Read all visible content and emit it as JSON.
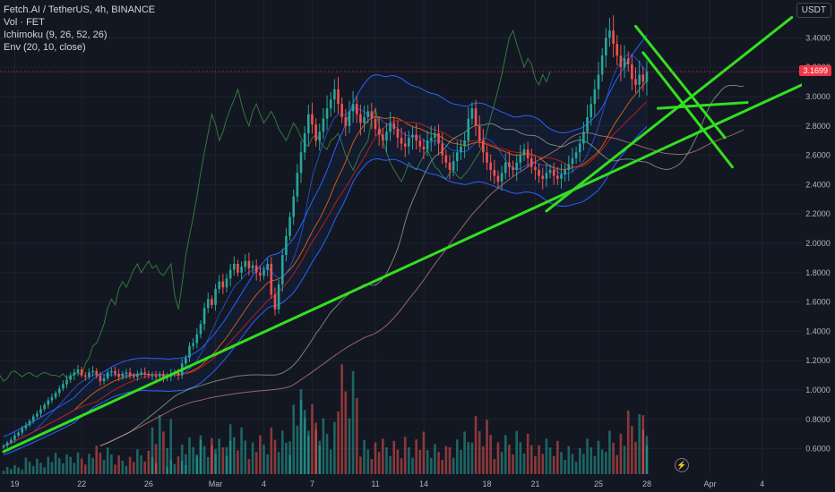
{
  "legend": {
    "symbol": "Fetch.AI / TetherUS, 4h, BINANCE",
    "volume": "Vol · FET",
    "ichimoku": "Ichimoku (9, 26, 52, 26)",
    "envelope": "Env (20, 10, close)"
  },
  "currency": "USDT",
  "last_price": "3.1699",
  "colors": {
    "background": "#131722",
    "up": "#26a69a",
    "down": "#ef5350",
    "trendline": "#32e01f",
    "envelope": "#2962ff",
    "price_tag": "#f23645"
  },
  "chart_data": {
    "type": "candlestick",
    "title": "Fetch.AI / TetherUS, 4h, BINANCE",
    "y_scale": "linear",
    "ylim": [
      0.5,
      3.8
    ],
    "y_ticks": [
      {
        "v": 3.4,
        "label": "3.4000"
      },
      {
        "v": 3.2,
        "label": "3.2000"
      },
      {
        "v": 3.0,
        "label": "3.0000"
      },
      {
        "v": 2.8,
        "label": "2.8000"
      },
      {
        "v": 2.6,
        "label": "2.6000"
      },
      {
        "v": 2.4,
        "label": "2.4000"
      },
      {
        "v": 2.2,
        "label": "2.2000"
      },
      {
        "v": 2.0,
        "label": "2.0000"
      },
      {
        "v": 1.8,
        "label": "1.8000"
      },
      {
        "v": 1.6,
        "label": "1.6000"
      },
      {
        "v": 1.4,
        "label": "1.4000"
      },
      {
        "v": 1.2,
        "label": "1.2000"
      },
      {
        "v": 1.0,
        "label": "1.0000"
      },
      {
        "v": 0.8,
        "label": "0.8000"
      },
      {
        "v": 0.6,
        "label": "0.6000"
      }
    ],
    "x_ticks": [
      {
        "i": 3,
        "label": "19"
      },
      {
        "i": 21,
        "label": "22"
      },
      {
        "i": 39,
        "label": "26"
      },
      {
        "i": 57,
        "label": "Mar"
      },
      {
        "i": 70,
        "label": "4"
      },
      {
        "i": 83,
        "label": "7"
      },
      {
        "i": 100,
        "label": "11"
      },
      {
        "i": 113,
        "label": "14"
      },
      {
        "i": 130,
        "label": "18"
      },
      {
        "i": 143,
        "label": "21"
      },
      {
        "i": 160,
        "label": "25"
      },
      {
        "i": 173,
        "label": "28"
      },
      {
        "i": 190,
        "label": "Apr"
      },
      {
        "i": 204,
        "label": "4"
      }
    ],
    "closes": [
      0.62,
      0.64,
      0.66,
      0.69,
      0.71,
      0.74,
      0.76,
      0.79,
      0.82,
      0.84,
      0.87,
      0.9,
      0.93,
      0.95,
      0.98,
      1.01,
      1.04,
      1.07,
      1.1,
      1.12,
      1.14,
      1.1,
      1.09,
      1.12,
      1.13,
      1.1,
      1.06,
      1.08,
      1.12,
      1.13,
      1.11,
      1.09,
      1.11,
      1.12,
      1.1,
      1.09,
      1.11,
      1.12,
      1.11,
      1.1,
      1.1,
      1.09,
      1.11,
      1.08,
      1.09,
      1.11,
      1.12,
      1.1,
      1.18,
      1.22,
      1.3,
      1.32,
      1.38,
      1.45,
      1.56,
      1.62,
      1.58,
      1.69,
      1.74,
      1.7,
      1.76,
      1.82,
      1.86,
      1.8,
      1.84,
      1.88,
      1.83,
      1.85,
      1.8,
      1.78,
      1.82,
      1.86,
      1.65,
      1.55,
      1.72,
      1.92,
      2.05,
      2.18,
      2.32,
      2.48,
      2.62,
      2.75,
      2.88,
      2.81,
      2.7,
      2.76,
      2.85,
      2.92,
      2.98,
      3.05,
      2.95,
      2.86,
      2.8,
      2.9,
      2.95,
      2.88,
      2.82,
      2.86,
      2.9,
      2.85,
      2.78,
      2.74,
      2.7,
      2.76,
      2.82,
      2.78,
      2.72,
      2.68,
      2.66,
      2.72,
      2.74,
      2.7,
      2.66,
      2.64,
      2.7,
      2.72,
      2.75,
      2.68,
      2.6,
      2.55,
      2.5,
      2.56,
      2.62,
      2.66,
      2.7,
      2.85,
      2.92,
      2.8,
      2.7,
      2.62,
      2.55,
      2.5,
      2.46,
      2.42,
      2.48,
      2.55,
      2.52,
      2.5,
      2.55,
      2.6,
      2.64,
      2.58,
      2.52,
      2.5,
      2.46,
      2.44,
      2.48,
      2.5,
      2.46,
      2.44,
      2.47,
      2.5,
      2.54,
      2.58,
      2.62,
      2.68,
      2.76,
      2.86,
      2.95,
      3.05,
      3.15,
      3.28,
      3.4,
      3.45,
      3.36,
      3.28,
      3.2,
      3.26,
      3.22,
      3.12,
      3.08,
      3.15,
      3.1,
      3.17
    ],
    "volume": [
      {
        "i": 0,
        "v": 0.05
      },
      {
        "i": 6,
        "v": 0.1
      },
      {
        "i": 12,
        "v": 0.12
      },
      {
        "i": 18,
        "v": 0.14
      },
      {
        "i": 24,
        "v": 0.16
      },
      {
        "i": 30,
        "v": 0.12
      },
      {
        "i": 36,
        "v": 0.14
      },
      {
        "i": 40,
        "v": 0.38
      },
      {
        "i": 44,
        "v": 0.1
      },
      {
        "i": 48,
        "v": 0.22
      },
      {
        "i": 52,
        "v": 0.25
      },
      {
        "i": 56,
        "v": 0.2
      },
      {
        "i": 60,
        "v": 0.3
      },
      {
        "i": 66,
        "v": 0.22
      },
      {
        "i": 72,
        "v": 0.28
      },
      {
        "i": 77,
        "v": 0.48
      },
      {
        "i": 80,
        "v": 0.42
      },
      {
        "i": 84,
        "v": 0.36
      },
      {
        "i": 90,
        "v": 0.62
      },
      {
        "i": 96,
        "v": 0.22
      },
      {
        "i": 102,
        "v": 0.2
      },
      {
        "i": 108,
        "v": 0.24
      },
      {
        "i": 114,
        "v": 0.18
      },
      {
        "i": 120,
        "v": 0.24
      },
      {
        "i": 126,
        "v": 0.35
      },
      {
        "i": 132,
        "v": 0.22
      },
      {
        "i": 138,
        "v": 0.26
      },
      {
        "i": 144,
        "v": 0.2
      },
      {
        "i": 150,
        "v": 0.18
      },
      {
        "i": 156,
        "v": 0.2
      },
      {
        "i": 162,
        "v": 0.28
      },
      {
        "i": 168,
        "v": 0.36
      },
      {
        "i": 172,
        "v": 0.48
      },
      {
        "i": 174,
        "v": 0.52
      },
      {
        "i": 176,
        "v": 0.24
      },
      {
        "i": 180,
        "v": 0.2
      },
      {
        "i": 184,
        "v": 0.14
      }
    ],
    "trendlines": [
      {
        "from": [
          0,
          0.58
        ],
        "to": [
          225,
          3.2
        ]
      },
      {
        "from": [
          146,
          2.22
        ],
        "to": [
          212,
          3.54
        ]
      },
      {
        "from": [
          170,
          3.48
        ],
        "to": [
          194,
          2.72
        ]
      },
      {
        "from": [
          172,
          3.3
        ],
        "to": [
          196,
          2.52
        ]
      },
      {
        "from": [
          176,
          2.92
        ],
        "to": [
          200,
          2.96
        ]
      }
    ]
  }
}
